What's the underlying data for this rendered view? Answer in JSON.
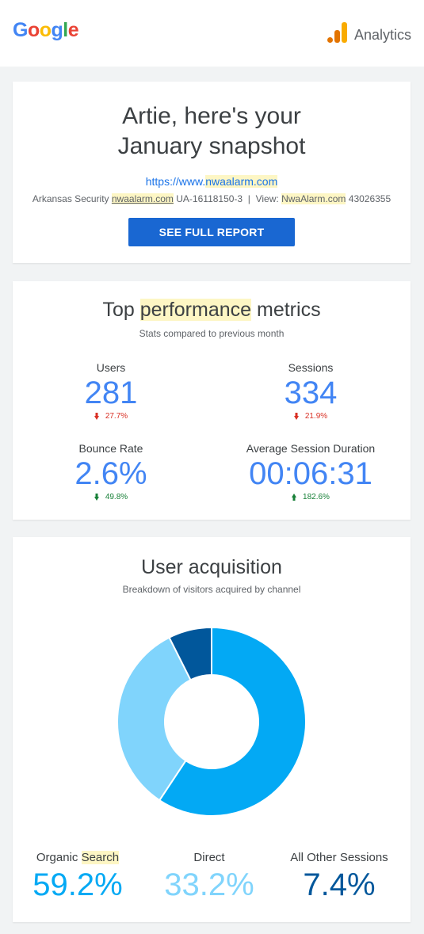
{
  "header": {
    "logo_letters": [
      "G",
      "o",
      "o",
      "g",
      "l",
      "e"
    ],
    "product": "Analytics"
  },
  "snapshot": {
    "title_line1": "Artie, here's your",
    "title_line2": "January snapshot",
    "url_prefix": "https://www.",
    "url_domain": "nwaalarm",
    "url_suffix": ".com",
    "account_name": "Arkansas Security",
    "property_domain": "nwaalarm",
    "property_tld": ".com",
    "property_id": "UA-16118150-3",
    "separator": "|",
    "view_label": "View:",
    "view_name": "NwaAlarm",
    "view_tld": ".com",
    "view_id": "43026355",
    "button_label": "SEE FULL REPORT"
  },
  "performance": {
    "title_pre": "Top ",
    "title_hl": "performance",
    "title_post": " metrics",
    "subtitle": "Stats compared to previous month",
    "metrics": [
      {
        "label": "Users",
        "value": "281",
        "change": "27.7%",
        "direction": "down"
      },
      {
        "label": "Sessions",
        "value": "334",
        "change": "21.9%",
        "direction": "down"
      },
      {
        "label": "Bounce Rate",
        "value": "2.6%",
        "change": "49.8%",
        "direction": "down-green"
      },
      {
        "label": "Average Session Duration",
        "value": "00:06:31",
        "change": "182.6%",
        "direction": "up"
      }
    ]
  },
  "acquisition": {
    "title": "User acquisition",
    "subtitle": "Breakdown of visitors acquired by channel",
    "channels": [
      {
        "label_pre": "Organic ",
        "label_hl": "Search",
        "value": "59.2%",
        "color": "#03a9f4"
      },
      {
        "label_pre": "Direct",
        "label_hl": "",
        "value": "33.2%",
        "color": "#80d4fc"
      },
      {
        "label_pre": "All Other Sessions",
        "label_hl": "",
        "value": "7.4%",
        "color": "#01579b"
      }
    ]
  },
  "chart_data": {
    "type": "pie",
    "categories": [
      "Organic Search",
      "Direct",
      "All Other Sessions"
    ],
    "values": [
      59.2,
      33.2,
      7.4
    ],
    "colors": [
      "#03a9f4",
      "#80d4fc",
      "#01579b"
    ],
    "title": "",
    "donut": true
  }
}
